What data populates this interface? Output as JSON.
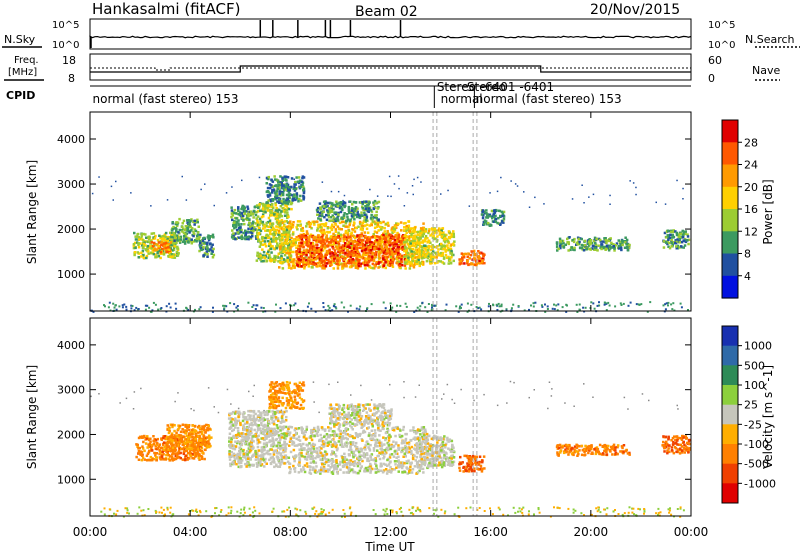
{
  "header": {
    "station": "Hankasalmi (fitACF)",
    "beam": "Beam 02",
    "date": "20/Nov/2015"
  },
  "top_panels": {
    "nsky_label": "N.Sky",
    "nsearch_label": "N.Search",
    "noise_ticks_left": [
      "10^5",
      "10^0"
    ],
    "noise_ticks_right": [
      "10^5",
      "10^0"
    ],
    "freq_label_1": "Freq.",
    "freq_label_2": "[MHz]",
    "freq_ticks": [
      "18",
      "8"
    ],
    "nave_label": "Nave",
    "nave_ticks": [
      "60",
      "0"
    ],
    "cpid_label": "CPID",
    "cpid_segments": [
      {
        "time": 0.1,
        "text": "normal (fast stereo) 153"
      },
      {
        "time": 13.85,
        "text": "Stereo"
      },
      {
        "time": 14.0,
        "text": "normal"
      },
      {
        "time": 15.05,
        "text": "Stereo"
      },
      {
        "time": 15.6,
        "text": "-6401 -6401"
      },
      {
        "time": 15.4,
        "text": "normal (fast stereo) 153"
      }
    ],
    "cpid_boundaries": [
      13.75,
      15.35
    ]
  },
  "chart_data": [
    {
      "type": "heatmap",
      "name": "power",
      "ylabel": "Slant Range [km]",
      "colorbar_label": "Power [dB]",
      "colorbar_ticks": [
        "28",
        "24",
        "20",
        "16",
        "12",
        "8",
        "4"
      ],
      "colorbar_colors": [
        "#e00000",
        "#ff5800",
        "#ff9a00",
        "#ffd000",
        "#9ccc33",
        "#3c9a60",
        "#2050a0",
        "#0010e0"
      ],
      "yticks": [
        1000,
        2000,
        3000,
        4000
      ],
      "ylim": [
        180,
        4600
      ],
      "xlim": [
        0,
        24
      ],
      "regions": [
        {
          "t0": 1.7,
          "t1": 3.5,
          "r0": 1380,
          "r1": 1950,
          "level": 0.45
        },
        {
          "t0": 2.4,
          "t1": 3.2,
          "r0": 1500,
          "r1": 1750,
          "level": 0.75
        },
        {
          "t0": 3.2,
          "t1": 4.3,
          "r0": 1700,
          "r1": 2250,
          "level": 0.35
        },
        {
          "t0": 4.3,
          "t1": 4.9,
          "r0": 1400,
          "r1": 1900,
          "level": 0.25
        },
        {
          "t0": 5.6,
          "t1": 6.6,
          "r0": 1800,
          "r1": 2550,
          "level": 0.3
        },
        {
          "t0": 6.6,
          "t1": 8.0,
          "r0": 1300,
          "r1": 2600,
          "level": 0.45
        },
        {
          "t0": 7.0,
          "t1": 8.5,
          "r0": 2600,
          "r1": 3200,
          "level": 0.25
        },
        {
          "t0": 7.5,
          "t1": 13.3,
          "r0": 1150,
          "r1": 2200,
          "level": 0.6
        },
        {
          "t0": 8.2,
          "t1": 12.6,
          "r0": 1200,
          "r1": 1900,
          "level": 0.85
        },
        {
          "t0": 9.0,
          "t1": 11.5,
          "r0": 2200,
          "r1": 2650,
          "level": 0.3
        },
        {
          "t0": 12.5,
          "t1": 14.5,
          "r0": 1250,
          "r1": 2050,
          "level": 0.5
        },
        {
          "t0": 14.7,
          "t1": 15.7,
          "r0": 1200,
          "r1": 1550,
          "level": 0.8
        },
        {
          "t0": 15.6,
          "t1": 16.5,
          "r0": 2100,
          "r1": 2450,
          "level": 0.25
        },
        {
          "t0": 18.6,
          "t1": 21.5,
          "r0": 1550,
          "r1": 1850,
          "level": 0.3
        },
        {
          "t0": 22.8,
          "t1": 23.9,
          "r0": 1600,
          "r1": 2000,
          "level": 0.3
        }
      ]
    },
    {
      "type": "heatmap",
      "name": "velocity",
      "ylabel": "Slant Range [km]",
      "colorbar_label": "Velocity [m s^-1]",
      "colorbar_ticks": [
        "1000",
        "500",
        "100",
        "25",
        "-25",
        "-100",
        "-500",
        "-1000"
      ],
      "colorbar_colors": [
        "#1830b0",
        "#2f6aa8",
        "#2e8b57",
        "#8ccf3c",
        "#c6c6bc",
        "#ffae00",
        "#ff8000",
        "#f04000",
        "#e00000"
      ],
      "yticks": [
        1000,
        2000,
        3000,
        4000
      ],
      "ylim": [
        180,
        4600
      ],
      "xlim": [
        0,
        24
      ],
      "regions": [
        {
          "t0": 1.8,
          "t1": 4.6,
          "r0": 1450,
          "r1": 2000,
          "level": 0.75
        },
        {
          "t0": 3.0,
          "t1": 4.8,
          "r0": 1700,
          "r1": 2250,
          "level": 0.7
        },
        {
          "t0": 5.5,
          "t1": 7.8,
          "r0": 1300,
          "r1": 2550,
          "level": 0.5
        },
        {
          "t0": 7.8,
          "t1": 13.5,
          "r0": 1150,
          "r1": 2200,
          "level": 0.5
        },
        {
          "t0": 7.1,
          "t1": 8.5,
          "r0": 2600,
          "r1": 3200,
          "level": 0.7
        },
        {
          "t0": 9.5,
          "t1": 12.0,
          "r0": 2200,
          "r1": 2700,
          "level": 0.5
        },
        {
          "t0": 13.0,
          "t1": 14.5,
          "r0": 1300,
          "r1": 2000,
          "level": 0.5
        },
        {
          "t0": 14.7,
          "t1": 15.7,
          "r0": 1200,
          "r1": 1550,
          "level": 0.8
        },
        {
          "t0": 18.6,
          "t1": 21.5,
          "r0": 1550,
          "r1": 1800,
          "level": 0.75
        },
        {
          "t0": 22.8,
          "t1": 23.9,
          "r0": 1600,
          "r1": 2000,
          "level": 0.8
        }
      ]
    }
  ],
  "xaxis": {
    "label": "Time UT",
    "ticks": [
      "00:00",
      "04:00",
      "08:00",
      "12:00",
      "16:00",
      "20:00",
      "00:00"
    ],
    "tick_hours": [
      0,
      4,
      8,
      12,
      16,
      20,
      24
    ]
  }
}
